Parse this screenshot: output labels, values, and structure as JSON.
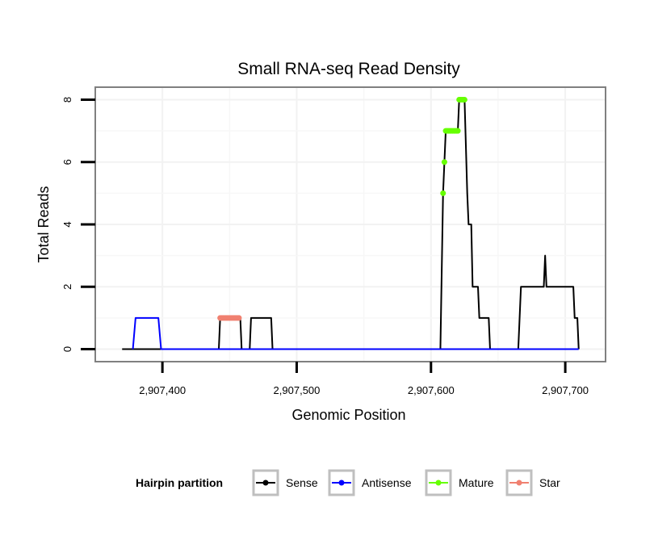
{
  "chart_data": {
    "type": "line",
    "title": "Small RNA-seq Read Density",
    "xlabel": "Genomic Position",
    "ylabel": "Total Reads",
    "xlim": [
      2907350,
      2907730
    ],
    "ylim": [
      -0.4,
      8.4
    ],
    "x_ticks": [
      2907400,
      2907500,
      2907600,
      2907700
    ],
    "x_tick_labels": [
      "2,907,400",
      "2,907,500",
      "2,907,600",
      "2,907,700"
    ],
    "y_ticks": [
      0,
      2,
      4,
      6,
      8
    ],
    "y_tick_labels": [
      "0",
      "2",
      "4",
      "6",
      "8"
    ],
    "grid": true,
    "legend": {
      "title": "Hairpin partition",
      "position": "bottom",
      "entries": [
        {
          "label": "Sense",
          "color": "#000000"
        },
        {
          "label": "Antisense",
          "color": "#0000ff"
        },
        {
          "label": "Mature",
          "color": "#66ff00"
        },
        {
          "label": "Star",
          "color": "#f08070"
        }
      ]
    },
    "series": [
      {
        "name": "Sense",
        "color": "#000000",
        "x": [
          2907370,
          2907442,
          2907443,
          2907458,
          2907459,
          2907465,
          2907466,
          2907481,
          2907482,
          2907607,
          2907609,
          2907610,
          2907611,
          2907614,
          2907620,
          2907621,
          2907623,
          2907625,
          2907627,
          2907628,
          2907629,
          2907630,
          2907631,
          2907635,
          2907636,
          2907643,
          2907644,
          2907665,
          2907667,
          2907670,
          2907684,
          2907685,
          2907686,
          2907688,
          2907706,
          2907707,
          2907709,
          2907710
        ],
        "y": [
          0,
          0,
          1,
          1,
          0,
          0,
          1,
          1,
          0,
          0,
          5,
          6,
          7,
          7,
          7,
          8,
          8,
          8,
          5,
          4,
          4,
          4,
          2,
          2,
          1,
          1,
          0,
          0,
          2,
          2,
          2,
          3,
          2,
          2,
          2,
          1,
          1,
          0
        ]
      },
      {
        "name": "Antisense",
        "color": "#0000ff",
        "x": [
          2907378,
          2907380,
          2907397,
          2907399,
          2907710
        ],
        "y": [
          0,
          1,
          1,
          0,
          0
        ]
      },
      {
        "name": "Mature",
        "color": "#66ff00",
        "points": [
          {
            "x": 2907609,
            "y": 5
          },
          {
            "x": 2907610,
            "y": 6
          },
          {
            "x": 2907611,
            "y": 7
          },
          {
            "x": 2907612,
            "y": 7
          },
          {
            "x": 2907613,
            "y": 7
          },
          {
            "x": 2907614,
            "y": 7
          },
          {
            "x": 2907615,
            "y": 7
          },
          {
            "x": 2907616,
            "y": 7
          },
          {
            "x": 2907617,
            "y": 7
          },
          {
            "x": 2907618,
            "y": 7
          },
          {
            "x": 2907619,
            "y": 7
          },
          {
            "x": 2907620,
            "y": 7
          },
          {
            "x": 2907621,
            "y": 8
          },
          {
            "x": 2907622,
            "y": 8
          },
          {
            "x": 2907623,
            "y": 8
          },
          {
            "x": 2907624,
            "y": 8
          },
          {
            "x": 2907625,
            "y": 8
          }
        ]
      },
      {
        "name": "Star",
        "color": "#f08070",
        "points": [
          {
            "x": 2907443,
            "y": 1
          },
          {
            "x": 2907444,
            "y": 1
          },
          {
            "x": 2907445,
            "y": 1
          },
          {
            "x": 2907446,
            "y": 1
          },
          {
            "x": 2907447,
            "y": 1
          },
          {
            "x": 2907448,
            "y": 1
          },
          {
            "x": 2907449,
            "y": 1
          },
          {
            "x": 2907450,
            "y": 1
          },
          {
            "x": 2907451,
            "y": 1
          },
          {
            "x": 2907452,
            "y": 1
          },
          {
            "x": 2907453,
            "y": 1
          },
          {
            "x": 2907454,
            "y": 1
          },
          {
            "x": 2907455,
            "y": 1
          },
          {
            "x": 2907456,
            "y": 1
          },
          {
            "x": 2907457,
            "y": 1
          }
        ]
      }
    ]
  }
}
